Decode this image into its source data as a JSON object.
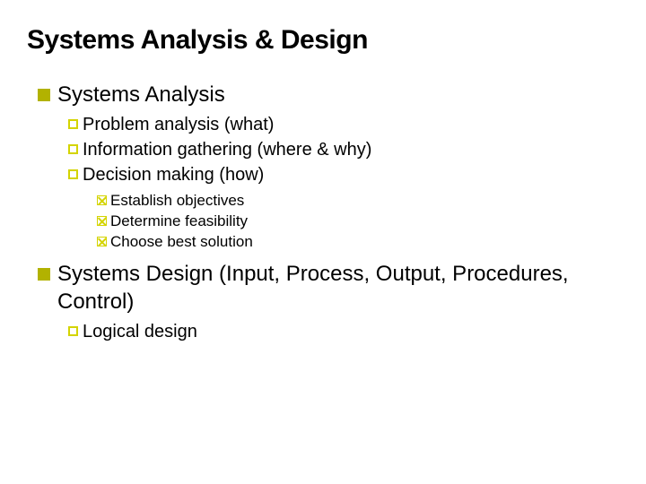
{
  "title": "Systems Analysis & Design",
  "colors": {
    "background": "#ffffff",
    "text": "#000000",
    "bullet_solid": "#b2b200",
    "bullet_outline": "#d4d400"
  },
  "typography": {
    "title_font": "Arial",
    "title_size": 30,
    "title_weight": 900,
    "body_font": "Verdana",
    "level1_size": 24,
    "level2_size": 20,
    "level3_size": 17
  },
  "bullets": {
    "level1_style": "filled-square",
    "level2_style": "outlined-square",
    "level3_style": "outlined-square-with-x"
  },
  "items": {
    "section1": {
      "label": "Systems Analysis",
      "sub1": "Problem analysis (what)",
      "sub2": "Information gathering (where & why)",
      "sub3": "Decision making (how)",
      "sub3_1": "Establish objectives",
      "sub3_2": "Determine feasibility",
      "sub3_3": "Choose best solution"
    },
    "section2": {
      "label": "Systems Design (Input, Process, Output, Procedures, Control)",
      "sub1": "Logical design"
    }
  }
}
